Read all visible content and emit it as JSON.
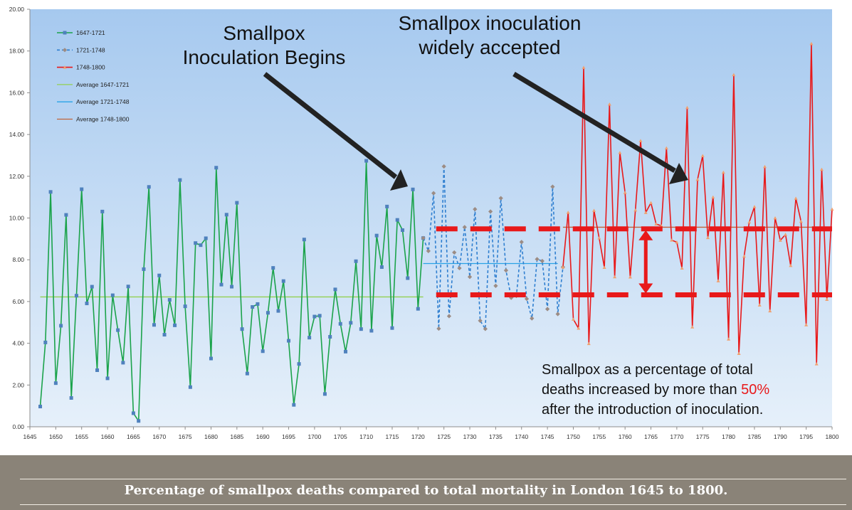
{
  "caption": "Percentage of smallpox deaths compared to total mortality in London 1645 to 1800.",
  "annotations": {
    "begins": [
      "Smallpox",
      "Inoculation Begins"
    ],
    "accepted": [
      "Smallpox inoculation",
      "widely accepted"
    ]
  },
  "note": {
    "line1": "Smallpox as a percentage of total",
    "line2_prefix": "deaths increased by more than ",
    "line2_highlight": "50%",
    "line3": "after the introduction of inoculation."
  },
  "colors": {
    "series1": "#1ba34b",
    "series2": "#2f7fd0",
    "series3": "#e8191a",
    "avg1": "#92d050",
    "avg2": "#29a3e6",
    "avg3": "#c0643b",
    "highlight": "#e8191a",
    "arrow": "#222222"
  },
  "chart_data": {
    "type": "line",
    "xlim": [
      1645,
      1800
    ],
    "ylim": [
      0,
      20
    ],
    "x_ticks": [
      1645,
      1650,
      1655,
      1660,
      1665,
      1670,
      1675,
      1680,
      1685,
      1690,
      1695,
      1700,
      1705,
      1710,
      1715,
      1720,
      1725,
      1730,
      1735,
      1740,
      1745,
      1750,
      1755,
      1760,
      1765,
      1770,
      1775,
      1780,
      1785,
      1790,
      1795,
      1800
    ],
    "y_ticks": [
      "0.00",
      "2.00",
      "4.00",
      "6.00",
      "8.00",
      "10.00",
      "12.00",
      "14.00",
      "16.00",
      "18.00",
      "20.00"
    ],
    "legend_position": "top-left",
    "series": [
      {
        "name": "1647-1721",
        "style": "solid-square",
        "x": [
          1647,
          1648,
          1649,
          1650,
          1651,
          1652,
          1653,
          1654,
          1655,
          1656,
          1657,
          1658,
          1659,
          1660,
          1661,
          1662,
          1663,
          1664,
          1665,
          1666,
          1667,
          1668,
          1669,
          1670,
          1671,
          1672,
          1673,
          1674,
          1675,
          1676,
          1677,
          1678,
          1679,
          1680,
          1681,
          1682,
          1683,
          1684,
          1685,
          1686,
          1687,
          1688,
          1689,
          1690,
          1691,
          1692,
          1693,
          1694,
          1695,
          1696,
          1697,
          1698,
          1699,
          1700,
          1701,
          1702,
          1703,
          1704,
          1705,
          1706,
          1707,
          1708,
          1709,
          1710,
          1711,
          1712,
          1713,
          1714,
          1715,
          1716,
          1717,
          1718,
          1719,
          1720,
          1721
        ],
        "values": [
          0.97,
          4.04,
          11.25,
          2.09,
          4.84,
          10.15,
          1.38,
          6.28,
          11.38,
          5.91,
          6.71,
          2.71,
          10.31,
          2.32,
          6.3,
          4.63,
          3.07,
          6.72,
          0.65,
          0.28,
          7.55,
          11.49,
          4.88,
          7.25,
          4.41,
          6.08,
          4.86,
          11.82,
          5.77,
          1.9,
          8.8,
          8.7,
          9.03,
          3.27,
          12.41,
          6.81,
          10.16,
          6.71,
          10.73,
          4.68,
          2.55,
          5.74,
          5.88,
          3.62,
          5.46,
          7.61,
          5.55,
          6.98,
          4.12,
          1.05,
          3.01,
          8.97,
          4.27,
          5.28,
          5.32,
          1.57,
          4.31,
          6.58,
          4.93,
          3.6,
          4.98,
          7.93,
          4.68,
          12.74,
          4.6,
          9.16,
          7.65,
          10.55,
          4.73,
          9.91,
          9.42,
          7.12,
          11.37,
          5.65,
          9.04
        ]
      },
      {
        "name": "1721-1748",
        "style": "dashed-diamond",
        "x": [
          1721,
          1722,
          1723,
          1724,
          1725,
          1726,
          1727,
          1728,
          1729,
          1730,
          1731,
          1732,
          1733,
          1734,
          1735,
          1736,
          1737,
          1738,
          1739,
          1740,
          1741,
          1742,
          1743,
          1744,
          1745,
          1746,
          1747,
          1748
        ],
        "values": [
          9.04,
          8.42,
          11.19,
          4.7,
          12.47,
          5.3,
          8.35,
          7.6,
          9.56,
          7.18,
          10.42,
          5.08,
          4.69,
          10.31,
          6.75,
          10.95,
          7.49,
          6.18,
          6.27,
          8.85,
          6.13,
          5.19,
          8.03,
          7.94,
          5.64,
          11.5,
          5.4,
          7.65
        ]
      },
      {
        "name": "1748-1800",
        "style": "solid-triangle",
        "x": [
          1748,
          1749,
          1750,
          1751,
          1752,
          1753,
          1754,
          1755,
          1756,
          1757,
          1758,
          1759,
          1760,
          1761,
          1762,
          1763,
          1764,
          1765,
          1766,
          1767,
          1768,
          1769,
          1770,
          1771,
          1772,
          1773,
          1774,
          1775,
          1776,
          1777,
          1778,
          1779,
          1780,
          1781,
          1782,
          1783,
          1784,
          1785,
          1786,
          1787,
          1788,
          1789,
          1790,
          1791,
          1792,
          1793,
          1794,
          1795,
          1796,
          1797,
          1798,
          1799,
          1800
        ],
        "values": [
          7.65,
          10.27,
          5.15,
          4.72,
          17.21,
          3.98,
          10.36,
          9.04,
          7.63,
          15.45,
          7.18,
          13.13,
          11.22,
          7.17,
          10.38,
          13.7,
          10.26,
          10.73,
          9.71,
          9.63,
          13.35,
          8.94,
          8.84,
          7.6,
          15.29,
          4.78,
          11.85,
          12.98,
          9.06,
          11.0,
          6.99,
          12.19,
          4.2,
          16.86,
          3.51,
          8.17,
          9.81,
          10.54,
          5.83,
          12.46,
          5.55,
          10.0,
          8.93,
          9.21,
          7.72,
          10.94,
          9.84,
          4.88,
          18.35,
          3.01,
          12.33,
          6.1,
          10.42
        ]
      },
      {
        "name": "Average 1647-1721",
        "style": "line",
        "x": [
          1647,
          1721
        ],
        "values": [
          6.22,
          6.22
        ]
      },
      {
        "name": "Average 1721-1748",
        "style": "line",
        "x": [
          1721,
          1747
        ],
        "values": [
          7.82,
          7.82
        ]
      },
      {
        "name": "Average 1748-1800",
        "style": "line",
        "x": [
          1748,
          1800
        ],
        "values": [
          9.56,
          9.56
        ]
      }
    ],
    "highlight_levels": [
      9.48,
      6.32
    ]
  }
}
